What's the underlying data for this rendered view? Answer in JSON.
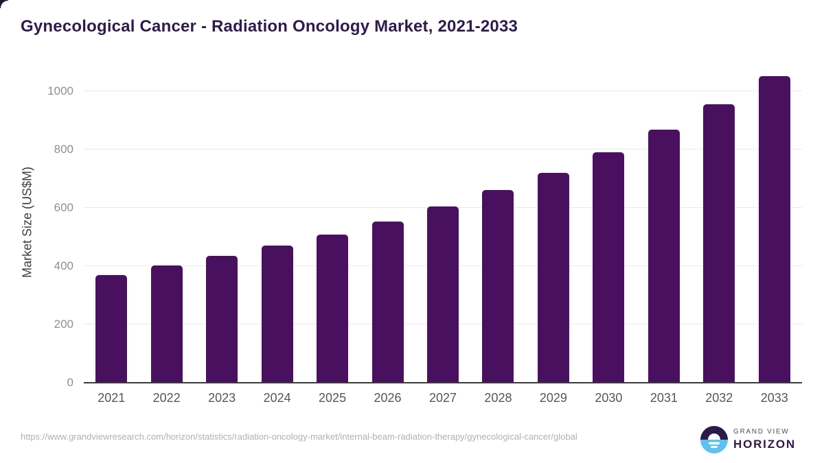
{
  "chart_data": {
    "type": "bar",
    "title": "Gynecological Cancer - Radiation Oncology Market, 2021-2033",
    "ylabel": "Market Size (US$M)",
    "xlabel": "",
    "categories": [
      "2021",
      "2022",
      "2023",
      "2024",
      "2025",
      "2026",
      "2027",
      "2028",
      "2029",
      "2030",
      "2031",
      "2032",
      "2033"
    ],
    "values": [
      370,
      401,
      434,
      470,
      509,
      553,
      605,
      661,
      720,
      789,
      867,
      955,
      1052
    ],
    "yticks": [
      0,
      200,
      400,
      600,
      800,
      1000
    ],
    "ylim": [
      0,
      1065
    ],
    "grid": "horizontal",
    "legend": "none",
    "colors": {
      "bar": "#4a1060",
      "grid_line": "#e9e9e9",
      "axis_line": "#3a3a3a",
      "y_tick_label": "#8f8f8f",
      "x_tick_label": "#565656",
      "axis_title": "#3d3d3d",
      "title": "#2d1b4e"
    }
  },
  "footer": {
    "source_url": "https://www.grandviewresearch.com/horizon/statistics/radiation-oncology-market/internal-beam-radiation-therapy/gynecological-cancer/global",
    "logo": {
      "brand_top": "GRAND VIEW",
      "brand_bottom": "HORIZON",
      "icon": "horizon-sun-circle-icon",
      "colors": {
        "dark": "#2d1a47",
        "light_blue": "#5bc2f1",
        "sun_white": "#ffffff"
      }
    }
  }
}
